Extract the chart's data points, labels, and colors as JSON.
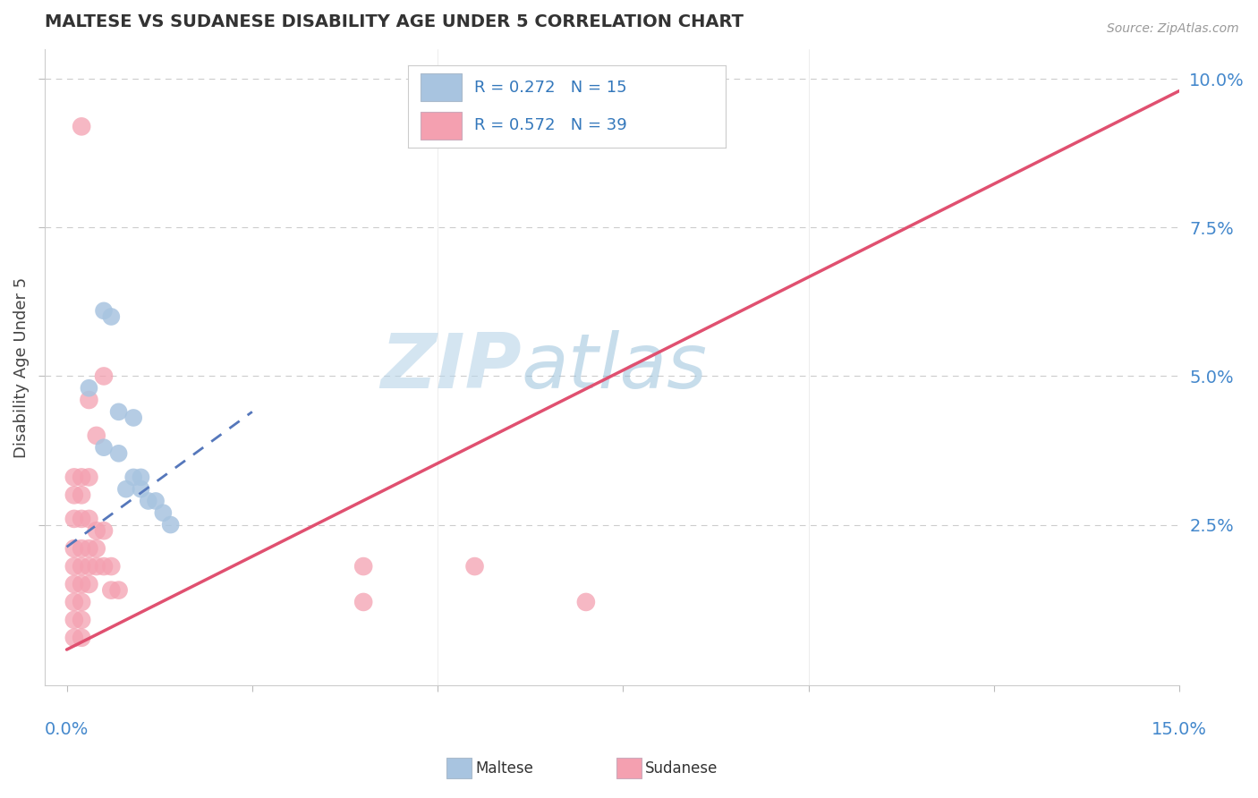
{
  "title": "MALTESE VS SUDANESE DISABILITY AGE UNDER 5 CORRELATION CHART",
  "source": "Source: ZipAtlas.com",
  "ylabel": "Disability Age Under 5",
  "xlim": [
    0.0,
    0.15
  ],
  "ylim": [
    -0.002,
    0.105
  ],
  "maltese_R": "0.272",
  "maltese_N": "15",
  "sudanese_R": "0.572",
  "sudanese_N": "39",
  "maltese_color": "#a8c4e0",
  "sudanese_color": "#f4a0b0",
  "maltese_line_color": "#5577bb",
  "sudanese_line_color": "#e05070",
  "maltese_scatter": [
    [
      0.005,
      0.061
    ],
    [
      0.006,
      0.06
    ],
    [
      0.003,
      0.048
    ],
    [
      0.007,
      0.044
    ],
    [
      0.009,
      0.043
    ],
    [
      0.005,
      0.038
    ],
    [
      0.007,
      0.037
    ],
    [
      0.009,
      0.033
    ],
    [
      0.01,
      0.033
    ],
    [
      0.008,
      0.031
    ],
    [
      0.01,
      0.031
    ],
    [
      0.011,
      0.029
    ],
    [
      0.012,
      0.029
    ],
    [
      0.013,
      0.027
    ],
    [
      0.014,
      0.025
    ]
  ],
  "sudanese_scatter": [
    [
      0.002,
      0.092
    ],
    [
      0.005,
      0.05
    ],
    [
      0.003,
      0.046
    ],
    [
      0.004,
      0.04
    ],
    [
      0.001,
      0.033
    ],
    [
      0.002,
      0.033
    ],
    [
      0.003,
      0.033
    ],
    [
      0.001,
      0.03
    ],
    [
      0.002,
      0.03
    ],
    [
      0.001,
      0.026
    ],
    [
      0.002,
      0.026
    ],
    [
      0.003,
      0.026
    ],
    [
      0.004,
      0.024
    ],
    [
      0.005,
      0.024
    ],
    [
      0.001,
      0.021
    ],
    [
      0.002,
      0.021
    ],
    [
      0.003,
      0.021
    ],
    [
      0.004,
      0.021
    ],
    [
      0.001,
      0.018
    ],
    [
      0.002,
      0.018
    ],
    [
      0.003,
      0.018
    ],
    [
      0.004,
      0.018
    ],
    [
      0.001,
      0.015
    ],
    [
      0.002,
      0.015
    ],
    [
      0.003,
      0.015
    ],
    [
      0.001,
      0.012
    ],
    [
      0.002,
      0.012
    ],
    [
      0.001,
      0.009
    ],
    [
      0.002,
      0.009
    ],
    [
      0.001,
      0.006
    ],
    [
      0.002,
      0.006
    ],
    [
      0.005,
      0.018
    ],
    [
      0.006,
      0.018
    ],
    [
      0.006,
      0.014
    ],
    [
      0.007,
      0.014
    ],
    [
      0.04,
      0.018
    ],
    [
      0.055,
      0.018
    ],
    [
      0.04,
      0.012
    ],
    [
      0.07,
      0.012
    ]
  ],
  "background_color": "#ffffff",
  "grid_color": "#cccccc",
  "watermark_zip": "ZIP",
  "watermark_atlas": "atlas",
  "watermark_color_zip": "#ccdded",
  "watermark_color_atlas": "#a8c8e0"
}
